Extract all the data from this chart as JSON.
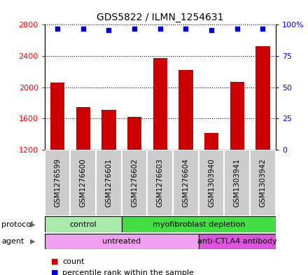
{
  "title": "GDS5822 / ILMN_1254631",
  "samples": [
    "GSM1276599",
    "GSM1276600",
    "GSM1276601",
    "GSM1276602",
    "GSM1276603",
    "GSM1276604",
    "GSM1303940",
    "GSM1303941",
    "GSM1303942"
  ],
  "counts": [
    2060,
    1750,
    1710,
    1620,
    2370,
    2220,
    1420,
    2070,
    2530
  ],
  "percentiles": [
    97,
    97,
    96,
    97,
    97,
    97,
    96,
    97,
    97
  ],
  "ylim_left": [
    1200,
    2800
  ],
  "ylim_right": [
    0,
    100
  ],
  "yticks_left": [
    1200,
    1600,
    2000,
    2400,
    2800
  ],
  "yticks_right": [
    0,
    25,
    50,
    75,
    100
  ],
  "bar_color": "#cc0000",
  "dot_color": "#0000cc",
  "protocol_groups": [
    {
      "label": "control",
      "start": 0,
      "end": 3,
      "color": "#aaeaaa"
    },
    {
      "label": "myofibroblast depletion",
      "start": 3,
      "end": 9,
      "color": "#44dd44"
    }
  ],
  "agent_groups": [
    {
      "label": "untreated",
      "start": 0,
      "end": 6,
      "color": "#f0a0f0"
    },
    {
      "label": "anti-CTLA4 antibody",
      "start": 6,
      "end": 9,
      "color": "#dd55dd"
    }
  ],
  "protocol_label": "protocol",
  "agent_label": "agent",
  "legend_count_label": "count",
  "legend_pct_label": "percentile rank within the sample",
  "sample_box_color": "#cccccc",
  "sample_box_edge_color": "#ffffff"
}
